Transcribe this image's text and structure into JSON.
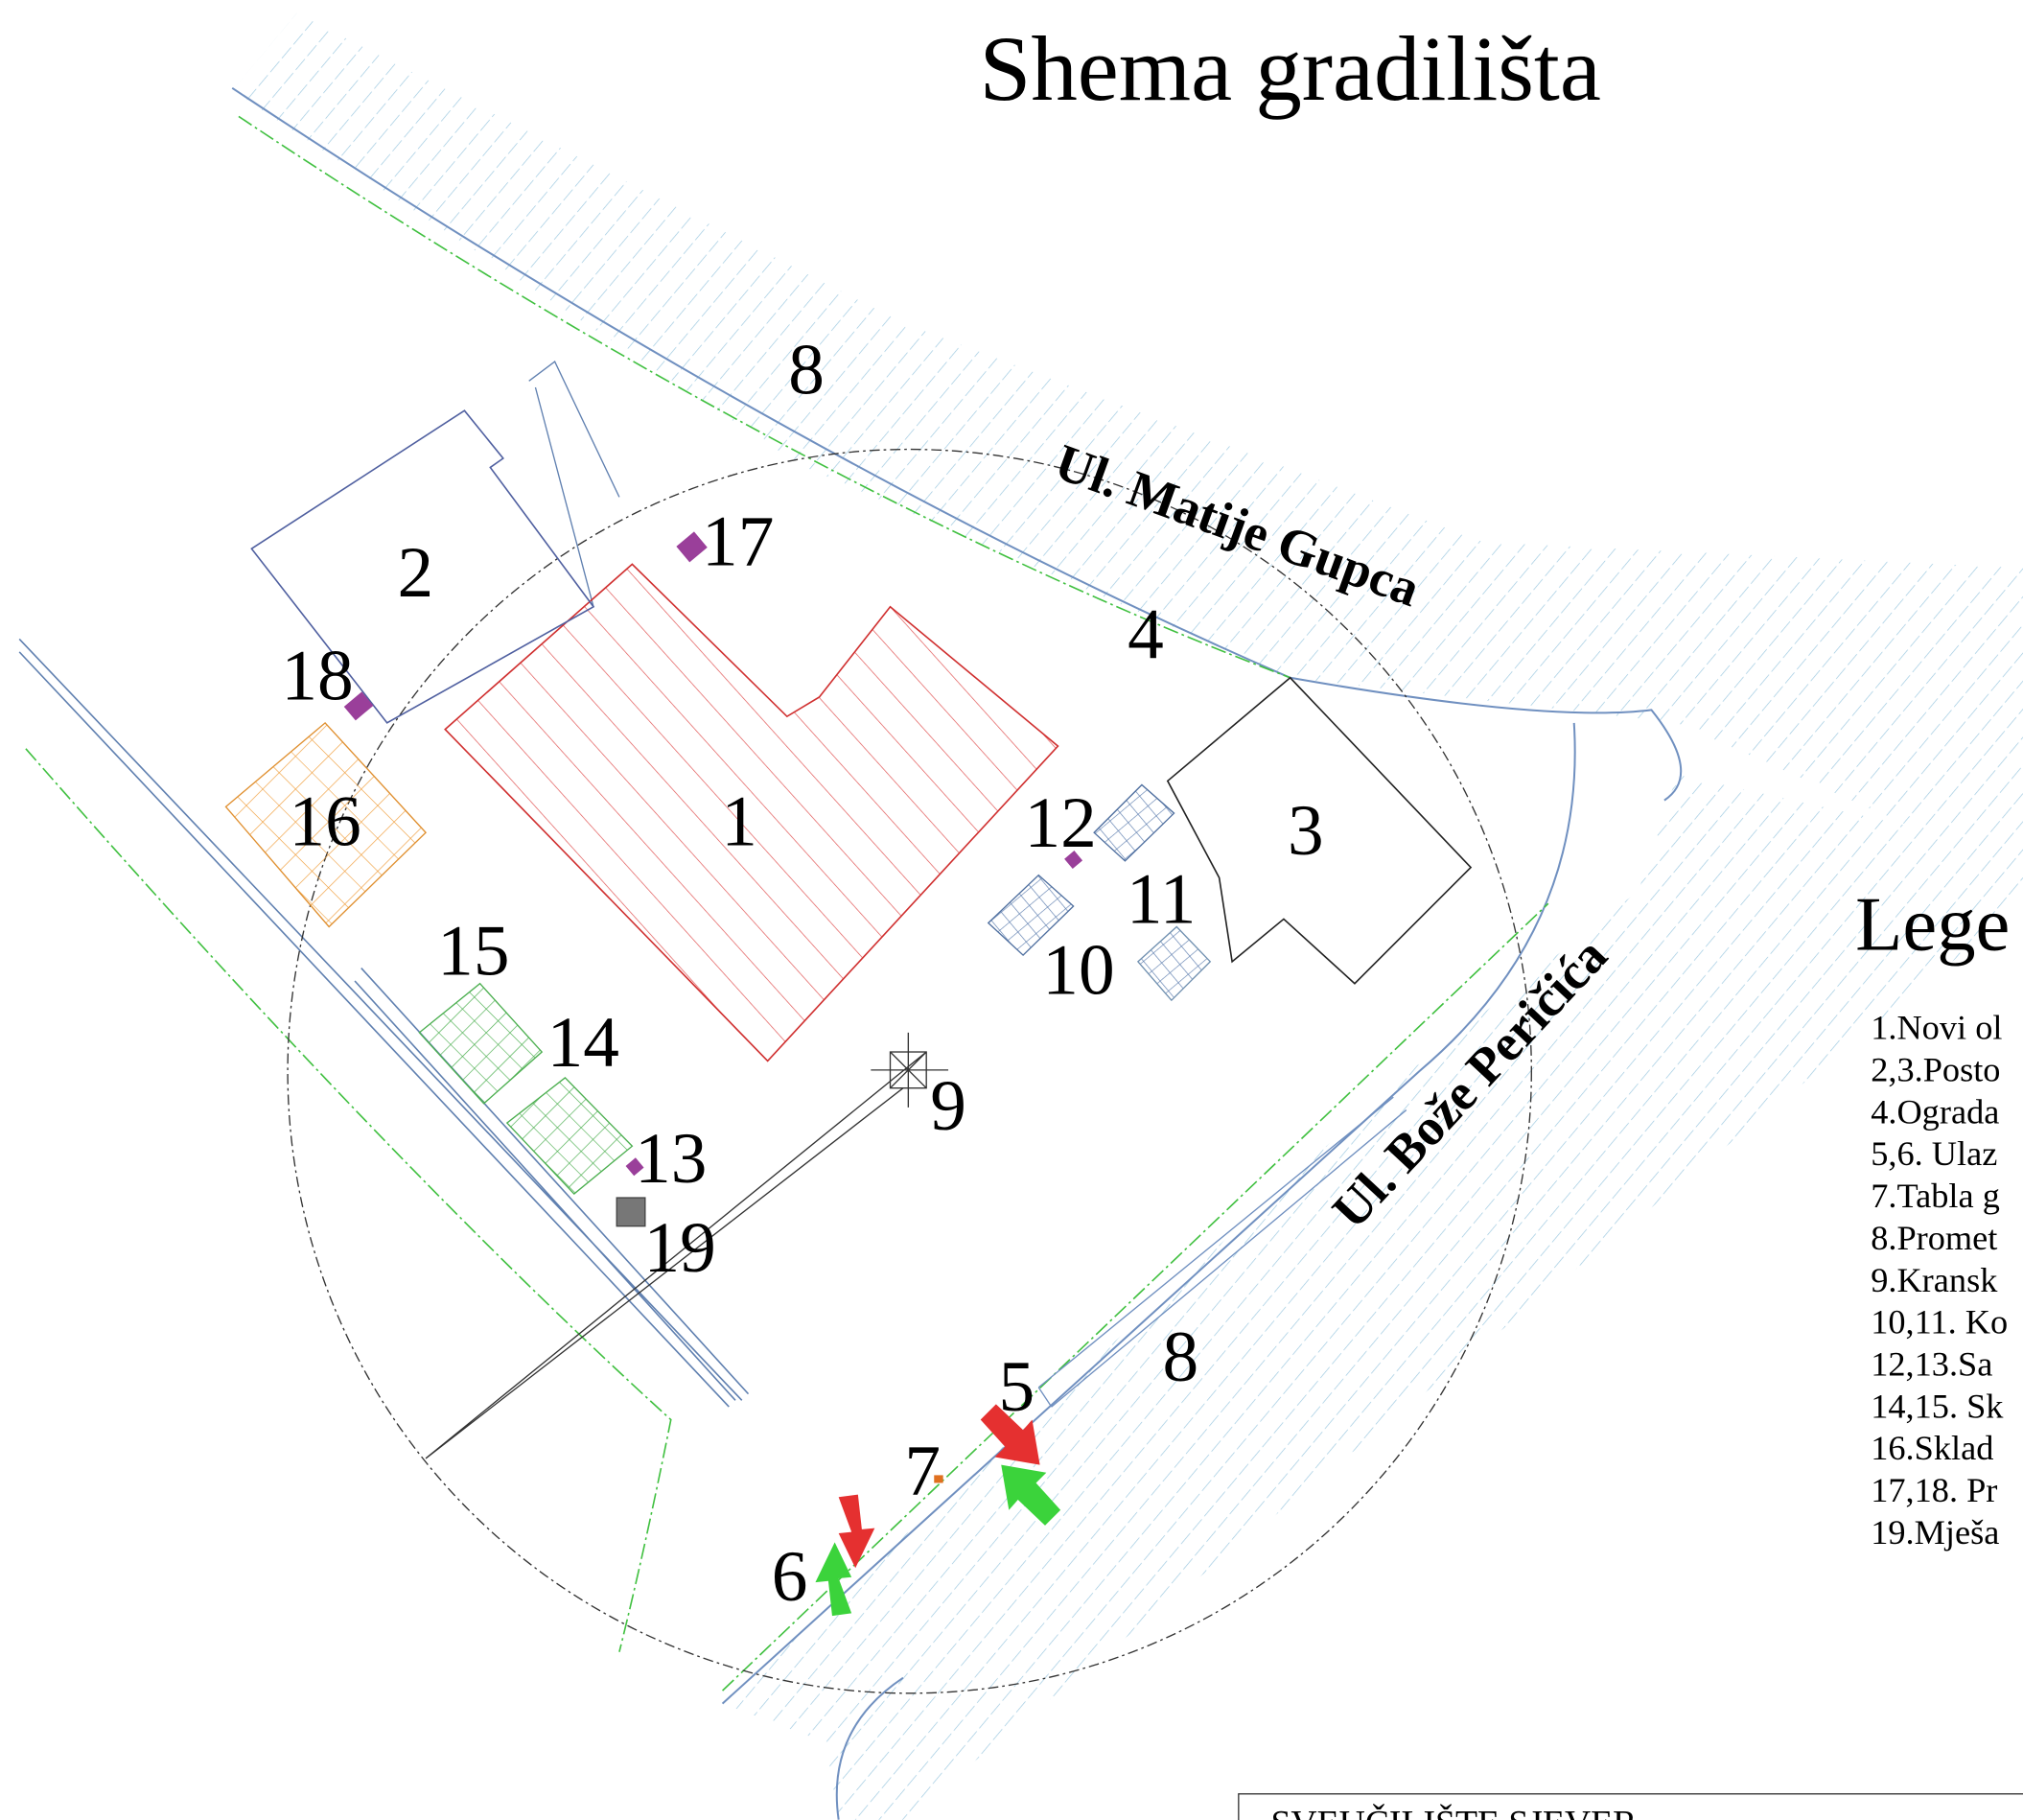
{
  "title": "Shema gradilišta",
  "streets": [
    "Ul. Matije Gupca",
    "Ul. Bože Peričića"
  ],
  "labels": [
    "8",
    "8",
    "17",
    "2",
    "4",
    "18",
    "16",
    "1",
    "12",
    "3",
    "11",
    "10",
    "15",
    "14",
    "9",
    "13",
    "19",
    "5",
    "7",
    "6"
  ],
  "legend": {
    "heading": "Lege",
    "items": [
      "1.Novi ol",
      "2,3.Posto",
      "4.Ograda",
      "5,6. Ulaz",
      "7.Tabla g",
      "8.Promet",
      "9.Kransk",
      "10,11. Ko",
      "12,13.Sa",
      "14,15. Sk",
      "16.Sklad",
      "17,18. Pr",
      "19.Mješa"
    ]
  },
  "footer": "SVEUČILIŠTE SJEVER"
}
